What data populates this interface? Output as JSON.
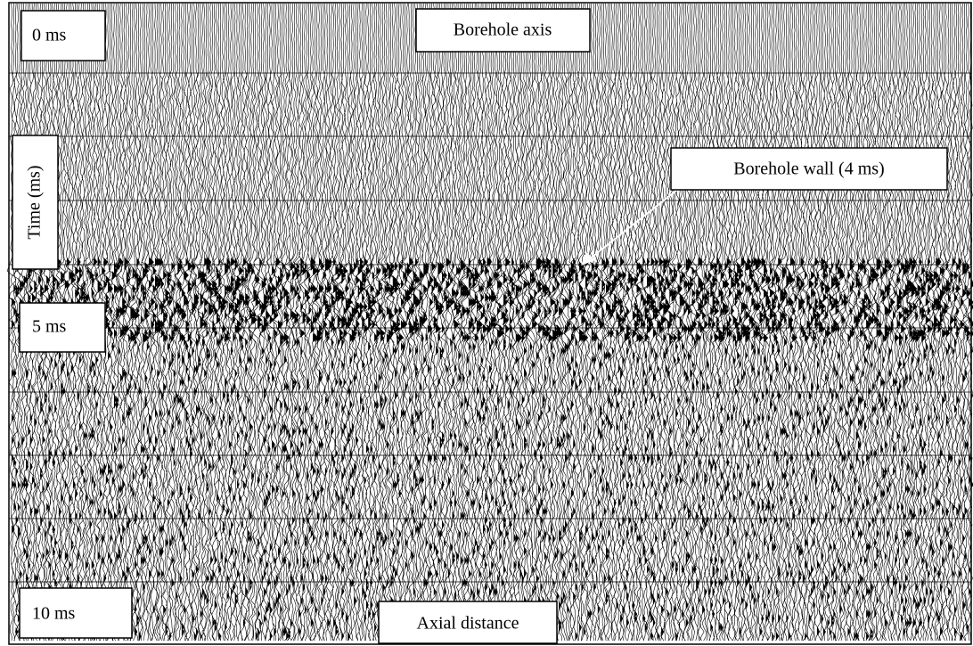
{
  "labels": {
    "top_left": "0 ms",
    "top_center": "Borehole axis",
    "axis_label": "Time (ms)",
    "annotation": "Borehole wall (4 ms)",
    "mid_left": "5 ms",
    "bottom_left": "10 ms",
    "bottom_center": "Axial distance"
  }
}
